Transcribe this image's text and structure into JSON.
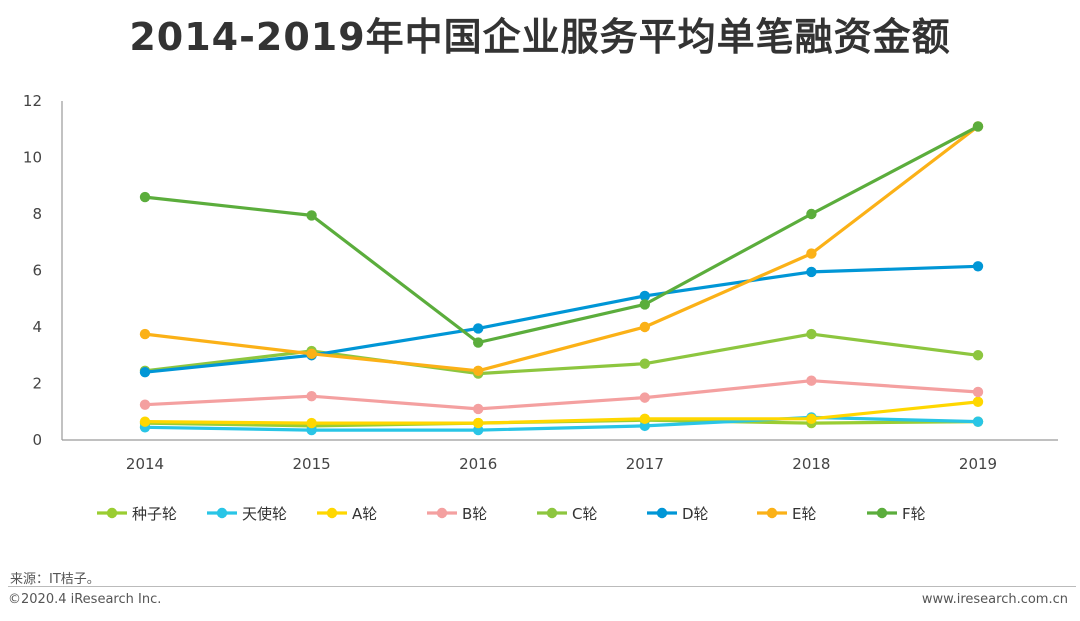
{
  "page": {
    "title": "2014-2019年中国企业服务平均单笔融资金额",
    "source": "来源：IT桔子。",
    "copyright": "©2020.4 iResearch Inc.",
    "website": "www.iresearch.com.cn"
  },
  "chart_data": {
    "type": "line",
    "title": "2014-2019年中国企业服务平均单笔融资金额",
    "xlabel": "",
    "ylabel": "",
    "categories": [
      "2014",
      "2015",
      "2016",
      "2017",
      "2018",
      "2019"
    ],
    "ylim": [
      0,
      12
    ],
    "yticks": [
      0,
      2,
      4,
      6,
      8,
      10,
      12
    ],
    "legend_position": "bottom",
    "series": [
      {
        "name": "种子轮",
        "color": "#9ACD32",
        "values": [
          0.6,
          0.5,
          0.6,
          0.7,
          0.6,
          0.65
        ]
      },
      {
        "name": "天使轮",
        "color": "#29C5E6",
        "values": [
          0.45,
          0.35,
          0.35,
          0.5,
          0.8,
          0.65
        ]
      },
      {
        "name": "A轮",
        "color": "#FFD700",
        "values": [
          0.65,
          0.6,
          0.6,
          0.75,
          0.75,
          1.35
        ]
      },
      {
        "name": "B轮",
        "color": "#F4A0A0",
        "values": [
          1.25,
          1.55,
          1.1,
          1.5,
          2.1,
          1.7
        ]
      },
      {
        "name": "C轮",
        "color": "#8DC63F",
        "values": [
          2.45,
          3.15,
          2.35,
          2.7,
          3.75,
          3.0
        ]
      },
      {
        "name": "D轮",
        "color": "#0096D6",
        "values": [
          2.4,
          3.0,
          3.95,
          5.1,
          5.95,
          6.15
        ]
      },
      {
        "name": "E轮",
        "color": "#FBB117",
        "values": [
          3.75,
          3.05,
          2.45,
          4.0,
          6.6,
          11.1
        ]
      },
      {
        "name": "F轮",
        "color": "#5BAD3C",
        "values": [
          8.6,
          7.95,
          3.45,
          4.8,
          8.0,
          11.1
        ]
      }
    ]
  }
}
